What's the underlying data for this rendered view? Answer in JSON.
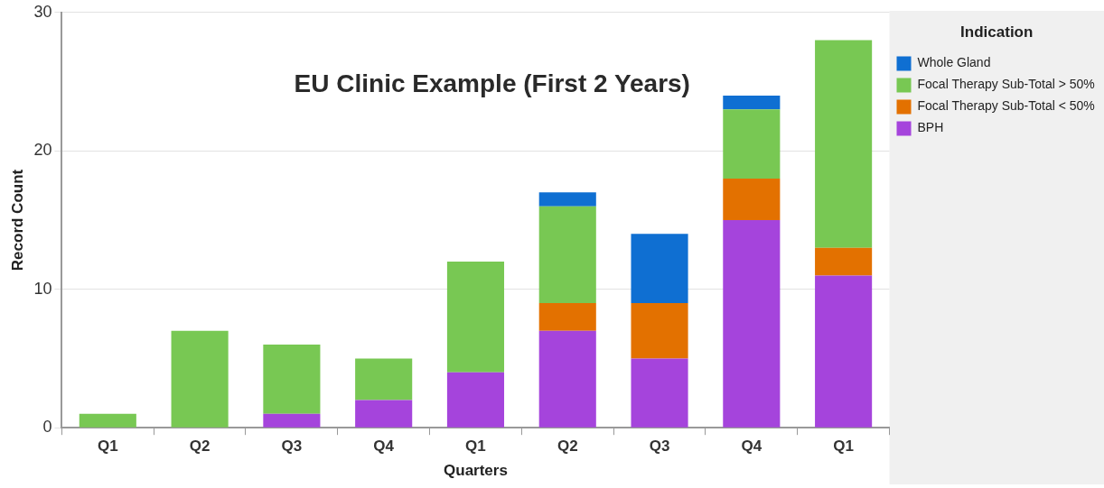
{
  "chart_data": {
    "type": "bar",
    "title": "EU Clinic Example (First 2 Years)",
    "xlabel": "Quarters",
    "ylabel": "Record Count",
    "legend_title": "Indication",
    "categories": [
      "Q1",
      "Q2",
      "Q3",
      "Q4",
      "Q1",
      "Q2",
      "Q3",
      "Q4",
      "Q1"
    ],
    "stacked": true,
    "series": [
      {
        "name": "BPH",
        "color": "#a544dc",
        "values": [
          0,
          0,
          1,
          2,
          4,
          7,
          5,
          15,
          11
        ]
      },
      {
        "name": "Focal Therapy Sub-Total < 50%",
        "color": "#e37100",
        "values": [
          0,
          0,
          0,
          0,
          0,
          2,
          4,
          3,
          2
        ]
      },
      {
        "name": "Focal Therapy Sub-Total > 50%",
        "color": "#78c853",
        "values": [
          1,
          7,
          5,
          3,
          8,
          7,
          0,
          5,
          15
        ]
      },
      {
        "name": "Whole Gland",
        "color": "#0f6fd2",
        "values": [
          0,
          0,
          0,
          0,
          0,
          1,
          5,
          1,
          0
        ]
      }
    ],
    "ylim": [
      0,
      30
    ],
    "yticks": [
      0,
      10,
      20,
      30
    ],
    "grid": "y",
    "legend": "right"
  }
}
